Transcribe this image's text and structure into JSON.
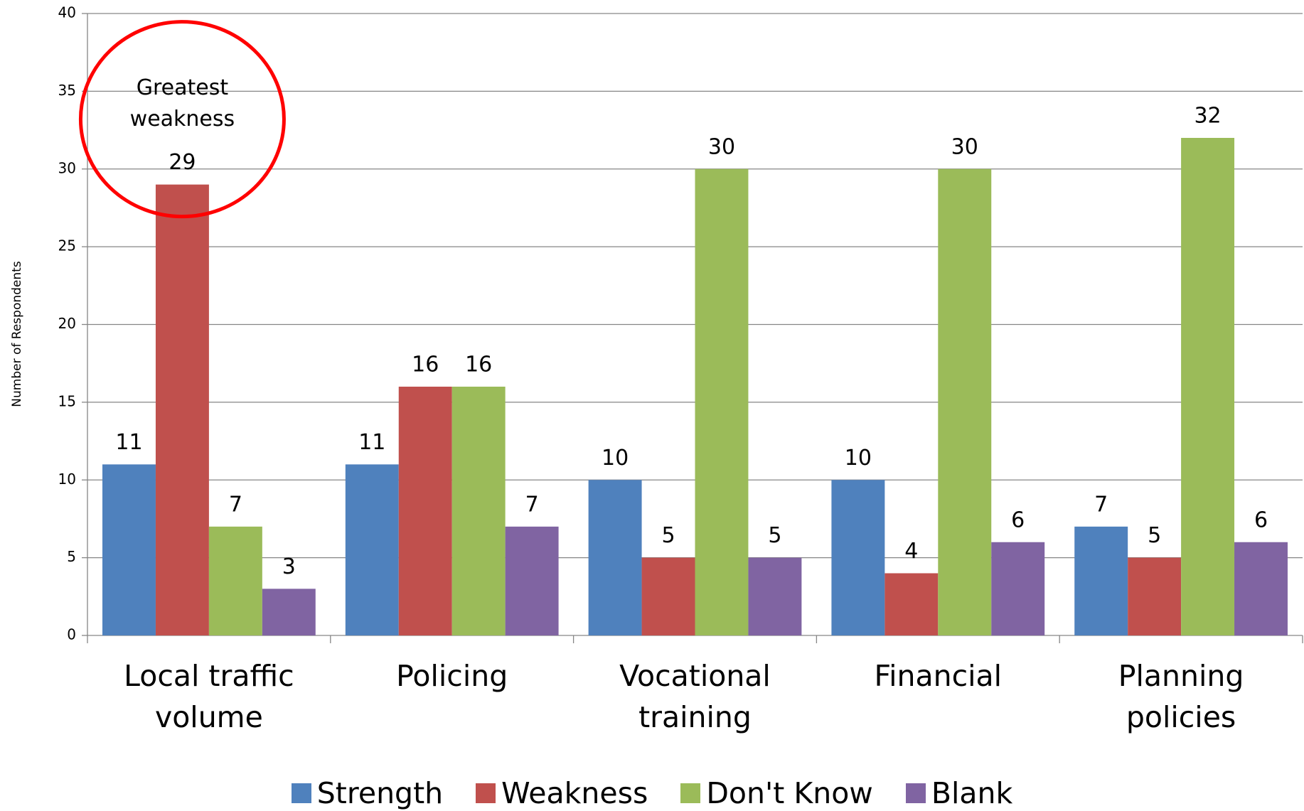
{
  "chart_data": {
    "type": "bar",
    "y_label": "Number of Respondents",
    "categories": [
      "Local traffic volume",
      "Policing",
      "Vocational training",
      "Financial",
      "Planning policies"
    ],
    "series": [
      {
        "name": "Strength",
        "color": "#4f81bd",
        "values": [
          11,
          11,
          10,
          10,
          7
        ]
      },
      {
        "name": "Weakness",
        "color": "#c0504d",
        "values": [
          29,
          16,
          5,
          4,
          5
        ]
      },
      {
        "name": "Don't Know",
        "color": "#9bbb59",
        "values": [
          7,
          16,
          30,
          30,
          32
        ]
      },
      {
        "name": "Blank",
        "color": "#8064a2",
        "values": [
          3,
          7,
          5,
          6,
          6
        ]
      }
    ],
    "ylim": [
      0,
      40
    ],
    "yticks": [
      0,
      5,
      10,
      15,
      20,
      25,
      30,
      35,
      40
    ],
    "grid": true,
    "legend": "bottom",
    "annotation": {
      "text": "Greatest weakness",
      "color": "#ff0000"
    }
  }
}
